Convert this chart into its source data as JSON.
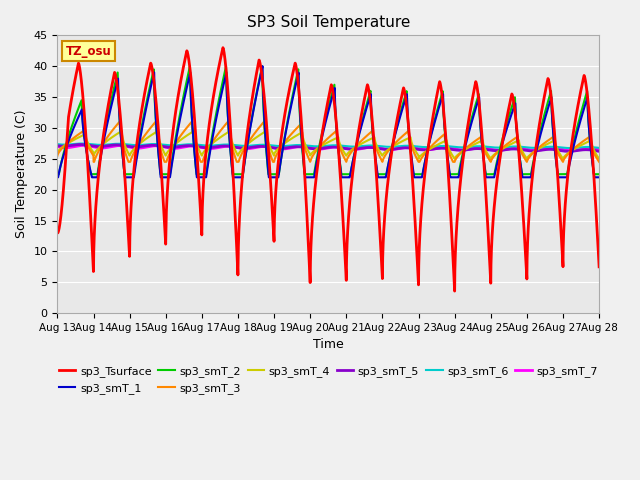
{
  "title": "SP3 Soil Temperature",
  "xlabel": "Time",
  "ylabel": "Soil Temperature (C)",
  "ylim": [
    0,
    45
  ],
  "background_color": "#f0f0f0",
  "plot_bg_color": "#e8e8e8",
  "annotation_text": "TZ_osu",
  "annotation_bg": "#ffff99",
  "annotation_border": "#cc8800",
  "series_colors": {
    "sp3_Tsurface": "#ff0000",
    "sp3_smT_1": "#0000cc",
    "sp3_smT_2": "#00cc00",
    "sp3_smT_3": "#ff8800",
    "sp3_smT_4": "#cccc00",
    "sp3_smT_5": "#8800cc",
    "sp3_smT_6": "#00cccc",
    "sp3_smT_7": "#ff00ff"
  },
  "series_lw": {
    "sp3_Tsurface": 2.0,
    "sp3_smT_1": 1.5,
    "sp3_smT_2": 1.5,
    "sp3_smT_3": 1.5,
    "sp3_smT_4": 1.5,
    "sp3_smT_5": 2.0,
    "sp3_smT_6": 1.5,
    "sp3_smT_7": 2.0
  },
  "tick_labels": [
    "Aug 13",
    "Aug 14",
    "Aug 15",
    "Aug 16",
    "Aug 17",
    "Aug 18",
    "Aug 19",
    "Aug 20",
    "Aug 21",
    "Aug 22",
    "Aug 23",
    "Aug 24",
    "Aug 25",
    "Aug 26",
    "Aug 27",
    "Aug 28"
  ],
  "yticks": [
    0,
    5,
    10,
    15,
    20,
    25,
    30,
    35,
    40,
    45
  ]
}
